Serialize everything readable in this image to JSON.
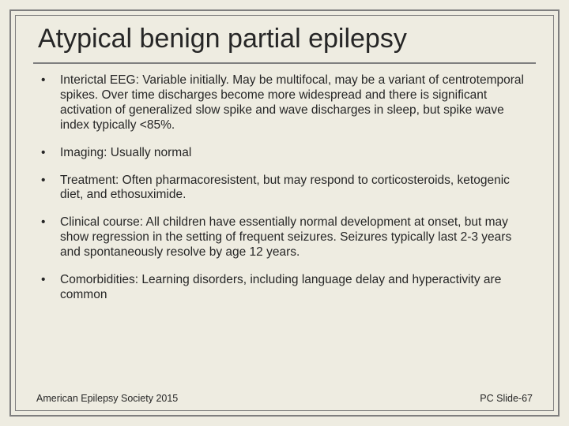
{
  "slide": {
    "title": "Atypical benign partial epilepsy",
    "background_color": "#eeece1",
    "border_color": "#7f7f7f",
    "text_color": "#262626",
    "title_fontsize": 34,
    "body_fontsize": 15.5,
    "footer_fontsize": 12.5,
    "bullets": [
      {
        "text": "Interictal EEG: Variable initially.  May be multifocal, may be a variant of centrotemporal spikes.  Over time discharges become more widespread and there is significant activation  of generalized slow spike and wave discharges in sleep, but spike wave index typically <85%."
      },
      {
        "text": "Imaging: Usually normal"
      },
      {
        "text": "Treatment: Often pharmacoresistent, but may respond to corticosteroids, ketogenic diet, and ethosuximide."
      },
      {
        "text": "Clinical course: All children have essentially normal development at onset, but may show regression in the setting of frequent seizures.  Seizures typically last 2-3 years and spontaneously resolve by age 12 years."
      },
      {
        "text": "Comorbidities: Learning disorders, including language delay and hyperactivity are common"
      }
    ],
    "footer_left": "American Epilepsy Society 2015",
    "footer_right": "PC Slide-67"
  }
}
